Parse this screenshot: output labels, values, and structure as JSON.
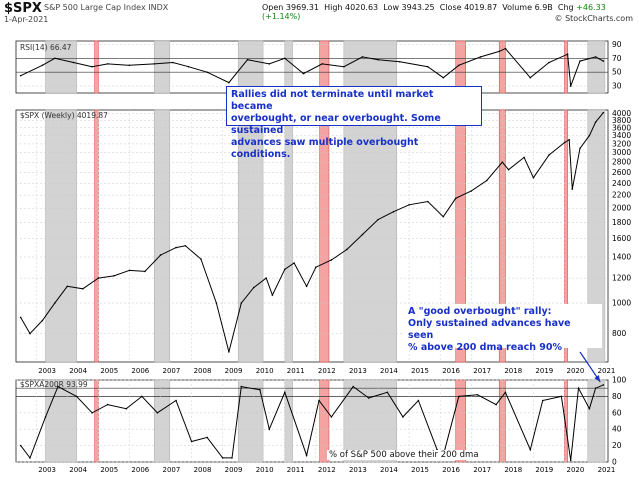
{
  "header": {
    "symbol": "$SPX",
    "name": "S&P 500 Large Cap Index INDX",
    "date": "1-Apr-2021",
    "open_label": "Open",
    "open": "3969.31",
    "high_label": "High",
    "high": "4020.63",
    "low_label": "Low",
    "low": "3943.25",
    "close_label": "Close",
    "close": "4019.87",
    "volume_label": "Volume",
    "volume": "6.9B",
    "chg_label": "Chg",
    "chg": "+46.33 (+1.14%)",
    "watermark": "© StockCharts.com"
  },
  "annotations": {
    "top_line1": "Rallies did not terminate until market became",
    "top_line2": "overbought, or near overbought. Some sustained",
    "top_line3": "advances saw multiple overbought conditions.",
    "mid_line1": "A \"good overbought\" rally:",
    "mid_line2": "Only sustained advances have seen",
    "mid_line3": "% above 200 dma reach 90%",
    "bottom_caption": "% of S&P 500 above their 200 dma"
  },
  "colors": {
    "gray_band": "#d3d3d3",
    "red_band": "#f4a3a3",
    "red_edge": "#e05050",
    "annotation": "#1830c8"
  },
  "chart_data": [
    {
      "type": "line",
      "title": "RSI(14) 66.47",
      "legend_label": "RSI(14) 66.47",
      "y_ticks": [
        "90",
        "70",
        "50",
        "30"
      ],
      "ylim": [
        20,
        95
      ],
      "reference_lines": [
        70,
        50
      ],
      "x": [
        2002.5,
        2003.2,
        2003.6,
        2004.2,
        2004.8,
        2005.3,
        2006.0,
        2006.8,
        2007.4,
        2007.9,
        2008.5,
        2009.2,
        2009.8,
        2010.5,
        2011.0,
        2011.6,
        2012.2,
        2012.9,
        2013.5,
        2014.0,
        2014.7,
        2015.6,
        2016.1,
        2016.6,
        2017.3,
        2017.9,
        2018.1,
        2018.9,
        2019.5,
        2020.1,
        2020.2,
        2020.5,
        2021.0,
        2021.25
      ],
      "values": [
        45,
        60,
        70,
        64,
        58,
        62,
        60,
        62,
        64,
        58,
        50,
        35,
        68,
        62,
        70,
        48,
        62,
        58,
        72,
        68,
        65,
        58,
        42,
        60,
        72,
        80,
        84,
        42,
        64,
        76,
        30,
        66,
        72,
        66
      ]
    },
    {
      "type": "line",
      "title": "$SPX (Weekly) 4019.87",
      "legend_label": "$SPX (Weekly) 4019.87",
      "y_ticks": [
        "4000",
        "3800",
        "3600",
        "3400",
        "3200",
        "3000",
        "2800",
        "2600",
        "2400",
        "2200",
        "2000",
        "1800",
        "1600",
        "1400",
        "1200",
        "1000",
        "800"
      ],
      "ylim": [
        650,
        4100
      ],
      "x_ticks": [
        "2003",
        "2004",
        "2005",
        "2006",
        "2007",
        "2008",
        "2009",
        "2010",
        "2011",
        "2012",
        "2013",
        "2014",
        "2015",
        "2016",
        "2017",
        "2018",
        "2019",
        "2020",
        "2021"
      ],
      "x": [
        2002.5,
        2002.8,
        2003.2,
        2003.6,
        2004.0,
        2004.5,
        2005.0,
        2005.5,
        2006.0,
        2006.5,
        2007.0,
        2007.5,
        2007.8,
        2008.3,
        2008.8,
        2009.2,
        2009.6,
        2010.0,
        2010.4,
        2010.6,
        2011.0,
        2011.3,
        2011.7,
        2012.0,
        2012.5,
        2013.0,
        2013.5,
        2014.0,
        2014.5,
        2015.0,
        2015.6,
        2016.1,
        2016.5,
        2017.0,
        2017.5,
        2018.0,
        2018.2,
        2018.7,
        2019.0,
        2019.5,
        2020.0,
        2020.15,
        2020.25,
        2020.5,
        2020.8,
        2021.0,
        2021.25
      ],
      "values": [
        900,
        800,
        880,
        1000,
        1130,
        1110,
        1200,
        1220,
        1270,
        1260,
        1420,
        1500,
        1520,
        1380,
        1000,
        700,
        1000,
        1120,
        1200,
        1060,
        1280,
        1340,
        1130,
        1300,
        1370,
        1480,
        1650,
        1840,
        1950,
        2050,
        2100,
        1880,
        2150,
        2270,
        2450,
        2800,
        2650,
        2900,
        2500,
        2950,
        3230,
        3300,
        2300,
        3100,
        3400,
        3750,
        4020
      ]
    },
    {
      "type": "line",
      "title": "% of S&P 500 above their 200 dma",
      "legend_label": "$SPXA200R 93.99",
      "y_ticks": [
        "100",
        "80",
        "60",
        "40",
        "20",
        "0"
      ],
      "ylim": [
        0,
        100
      ],
      "reference_lines": [
        90,
        80
      ],
      "x": [
        2002.5,
        2002.8,
        2003.3,
        2003.7,
        2004.3,
        2004.8,
        2005.3,
        2005.9,
        2006.4,
        2006.9,
        2007.5,
        2008.0,
        2008.5,
        2009.0,
        2009.3,
        2009.6,
        2010.2,
        2010.5,
        2011.0,
        2011.7,
        2012.1,
        2012.5,
        2013.2,
        2013.7,
        2014.3,
        2014.8,
        2015.3,
        2015.9,
        2016.1,
        2016.6,
        2017.2,
        2017.8,
        2018.1,
        2018.9,
        2019.3,
        2019.9,
        2020.2,
        2020.45,
        2020.8,
        2021.0,
        2021.25
      ],
      "values": [
        20,
        5,
        55,
        92,
        80,
        60,
        70,
        65,
        80,
        60,
        75,
        25,
        30,
        5,
        5,
        92,
        88,
        40,
        85,
        8,
        75,
        55,
        92,
        78,
        85,
        55,
        75,
        15,
        8,
        80,
        82,
        70,
        85,
        15,
        75,
        80,
        2,
        90,
        65,
        90,
        94
      ]
    }
  ],
  "bands": {
    "gray": [
      [
        2003.3,
        2004.3
      ],
      [
        2006.8,
        2007.3
      ],
      [
        2009.5,
        2010.3
      ],
      [
        2011.0,
        2011.25
      ],
      [
        2012.9,
        2014.6
      ],
      [
        2020.75,
        2021.3
      ]
    ],
    "red": [
      [
        2004.88,
        2005.0
      ],
      [
        2012.12,
        2012.42
      ],
      [
        2016.5,
        2016.82
      ],
      [
        2017.9,
        2018.1
      ],
      [
        2020.0,
        2020.1
      ]
    ]
  }
}
